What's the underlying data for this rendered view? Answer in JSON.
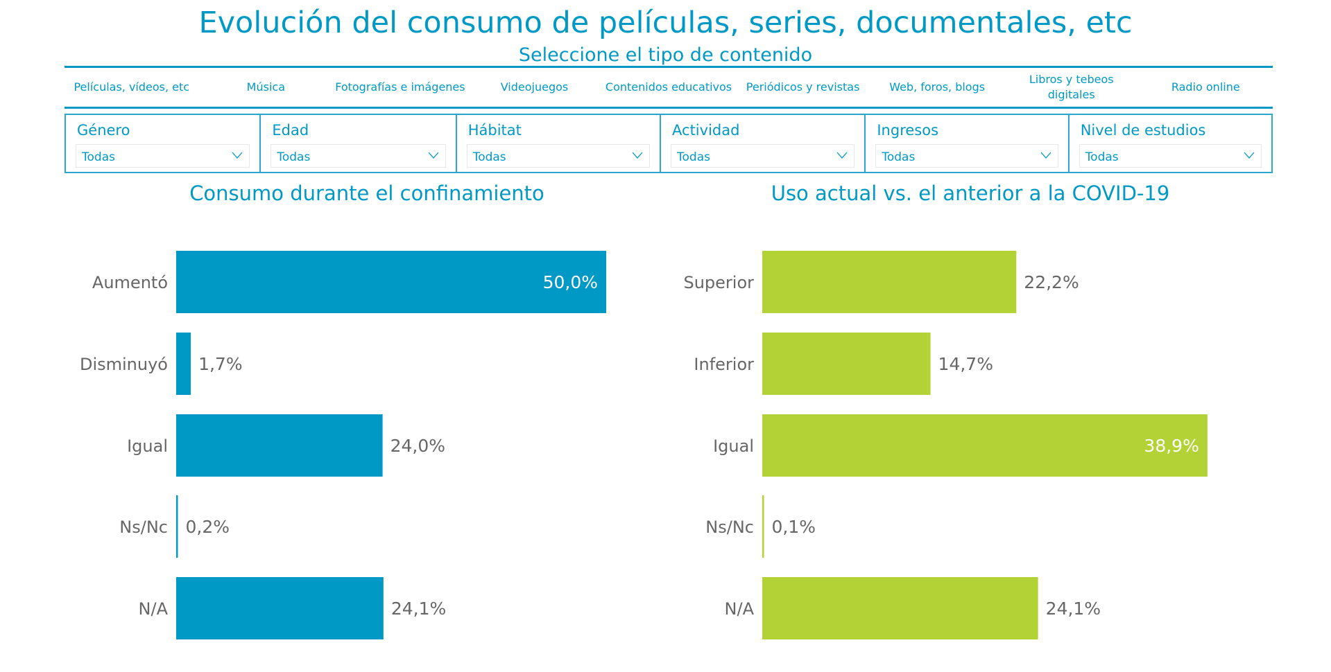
{
  "title": "Evolución del consumo de películas, series, documentales, etc",
  "subtitle": "Seleccione el tipo de contenido",
  "tabs": [
    "Películas, vídeos, etc",
    "Música",
    "Fotografías e imágenes",
    "Videojuegos",
    "Contenidos educativos",
    "Periódicos y revistas",
    "Web, foros, blogs",
    "Libros y tebeos digitales",
    "Radio online"
  ],
  "filters": [
    {
      "label": "Género",
      "value": "Todas"
    },
    {
      "label": "Edad",
      "value": "Todas"
    },
    {
      "label": "Hábitat",
      "value": "Todas"
    },
    {
      "label": "Actividad",
      "value": "Todas"
    },
    {
      "label": "Ingresos",
      "value": "Todas"
    },
    {
      "label": "Nivel de estudios",
      "value": "Todas"
    }
  ],
  "chart_data": [
    {
      "type": "bar",
      "orientation": "horizontal",
      "title": "Consumo durante el confinamiento",
      "categories": [
        "Aumentó",
        "Disminuyó",
        "Igual",
        "Ns/Nc",
        "N/A"
      ],
      "values": [
        50.0,
        1.7,
        24.0,
        0.2,
        24.1
      ],
      "labels": [
        "50,0%",
        "1,7%",
        "24,0%",
        "0,2%",
        "24,1%"
      ],
      "color": "#0099c6",
      "xlim": [
        0,
        50
      ]
    },
    {
      "type": "bar",
      "orientation": "horizontal",
      "title": "Uso actual vs. el anterior a la COVID-19",
      "categories": [
        "Superior",
        "Inferior",
        "Igual",
        "Ns/Nc",
        "N/A"
      ],
      "values": [
        22.2,
        14.7,
        38.9,
        0.1,
        24.1
      ],
      "labels": [
        "22,2%",
        "14,7%",
        "38,9%",
        "0,1%",
        "24,1%"
      ],
      "color": "#b2d235",
      "xlim": [
        0,
        38.9
      ]
    }
  ]
}
